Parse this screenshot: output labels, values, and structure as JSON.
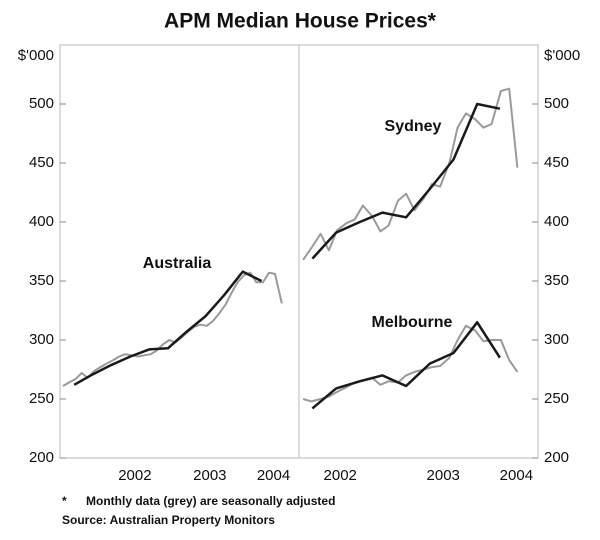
{
  "title": "APM Median House Prices*",
  "footnote": {
    "marker": "*",
    "text": "Monthly data (grey) are seasonally adjusted"
  },
  "source": "Source: Australian Property Monitors",
  "chart_data": [
    {
      "type": "line",
      "ylabel": "$'000",
      "yaxis_side": "left",
      "ylim": [
        200,
        550
      ],
      "yticks": [
        200,
        250,
        300,
        350,
        400,
        450,
        500
      ],
      "xlim": [
        2001.5,
        2004.69
      ],
      "xticks": [
        {
          "value": 2002.5,
          "label": "2002"
        },
        {
          "value": 2003.5,
          "label": "2003"
        },
        {
          "value": 2004.35,
          "label": "2004"
        }
      ],
      "series": [
        {
          "name": "Australia",
          "color": "#9a9a9a",
          "x": [
            2001.54,
            2001.62,
            2001.71,
            2001.79,
            2001.87,
            2001.96,
            2002.04,
            2002.12,
            2002.21,
            2002.29,
            2002.37,
            2002.46,
            2002.54,
            2002.62,
            2002.71,
            2002.79,
            2002.87,
            2002.96,
            2003.04,
            2003.12,
            2003.21,
            2003.29,
            2003.37,
            2003.46,
            2003.54,
            2003.62,
            2003.71,
            2003.79,
            2003.87,
            2003.96,
            2004.04,
            2004.12,
            2004.21,
            2004.29,
            2004.37,
            2004.46
          ],
          "values": [
            261,
            264,
            267,
            272,
            268,
            274,
            277,
            280,
            283,
            286,
            288,
            287,
            286,
            287,
            288,
            291,
            296,
            300,
            298,
            302,
            307,
            311,
            313,
            312,
            316,
            322,
            330,
            340,
            349,
            355,
            357,
            349,
            349,
            357,
            356,
            331
          ],
          "quarterly": {
            "color": "#1a1a1a",
            "x": [
              2001.69,
              2001.94,
              2002.19,
              2002.44,
              2002.69,
              2002.94,
              2003.19,
              2003.44,
              2003.69,
              2003.94,
              2004.19
            ],
            "values": [
              262,
              271,
              279,
              286,
              292,
              293,
              307,
              320,
              338,
              358,
              350
            ]
          }
        }
      ]
    },
    {
      "type": "line",
      "ylabel": "$'000",
      "yaxis_side": "right",
      "ylim": [
        200,
        550
      ],
      "yticks": [
        200,
        250,
        300,
        350,
        400,
        450,
        500
      ],
      "xlim": [
        2002.1,
        2004.42
      ],
      "xticks": [
        {
          "value": 2002.5,
          "label": "2002"
        },
        {
          "value": 2003.5,
          "label": "2003"
        },
        {
          "value": 2004.21,
          "label": "2004"
        }
      ],
      "series": [
        {
          "name": "Sydney",
          "color": "#9a9a9a",
          "x": [
            2002.14,
            2002.22,
            2002.31,
            2002.39,
            2002.47,
            2002.56,
            2002.64,
            2002.72,
            2002.81,
            2002.89,
            2002.97,
            2003.06,
            2003.14,
            2003.22,
            2003.31,
            2003.39,
            2003.47,
            2003.56,
            2003.64,
            2003.72,
            2003.81,
            2003.89,
            2003.97,
            2004.06,
            2004.14,
            2004.22
          ],
          "values": [
            368,
            378,
            390,
            376,
            393,
            399,
            402,
            414,
            405,
            392,
            397,
            418,
            424,
            410,
            420,
            432,
            430,
            450,
            480,
            492,
            487,
            480,
            483,
            511,
            513,
            446
          ],
          "quarterly": {
            "color": "#1a1a1a",
            "x": [
              2002.23,
              2002.46,
              2002.69,
              2002.91,
              2003.14,
              2003.37,
              2003.6,
              2003.83,
              2004.05
            ],
            "values": [
              369,
              391,
              400,
              408,
              404,
              428,
              453,
              500,
              496
            ]
          }
        },
        {
          "name": "Melbourne",
          "color": "#9a9a9a",
          "x": [
            2002.14,
            2002.22,
            2002.31,
            2002.39,
            2002.47,
            2002.56,
            2002.64,
            2002.72,
            2002.81,
            2002.89,
            2002.97,
            2003.06,
            2003.14,
            2003.22,
            2003.31,
            2003.39,
            2003.47,
            2003.56,
            2003.64,
            2003.72,
            2003.81,
            2003.89,
            2003.97,
            2004.06,
            2004.14,
            2004.22
          ],
          "values": [
            250,
            248,
            250,
            252,
            256,
            260,
            264,
            266,
            268,
            262,
            265,
            264,
            270,
            273,
            275,
            277,
            278,
            285,
            300,
            312,
            308,
            299,
            300,
            300,
            283,
            273
          ],
          "quarterly": {
            "color": "#1a1a1a",
            "x": [
              2002.23,
              2002.46,
              2002.69,
              2002.91,
              2003.14,
              2003.37,
              2003.6,
              2003.83,
              2004.05
            ],
            "values": [
              242,
              259,
              265,
              270,
              261,
              280,
              289,
              315,
              285
            ]
          }
        }
      ]
    }
  ]
}
